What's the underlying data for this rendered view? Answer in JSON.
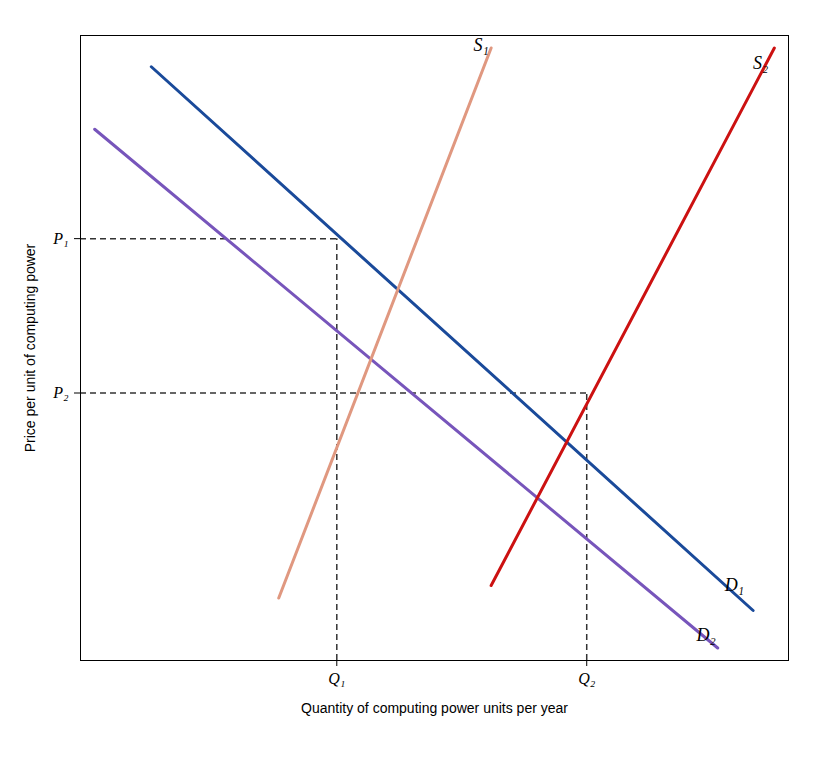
{
  "chart_data": {
    "type": "line",
    "xlabel": "Quantity of computing power units per year",
    "ylabel": "Price per unit of computing power",
    "xlim": [
      0,
      10
    ],
    "ylim": [
      0,
      10
    ],
    "xticks": [
      {
        "value": 3.62,
        "label": "Q₁"
      },
      {
        "value": 7.15,
        "label": "Q₂"
      }
    ],
    "yticks": [
      {
        "value": 6.75,
        "label": "P₁"
      },
      {
        "value": 4.28,
        "label": "P₂"
      }
    ],
    "grid": false,
    "series": [
      {
        "color": "#1a4a9a",
        "x": [
          1.0,
          9.5
        ],
        "values": [
          9.5,
          0.8
        ]
      },
      {
        "color": "#7755bb",
        "x": [
          0.2,
          9.0
        ],
        "values": [
          8.5,
          0.2
        ]
      },
      {
        "color": "#e09880",
        "x": [
          2.8,
          5.8
        ],
        "values": [
          1.0,
          9.8
        ]
      },
      {
        "color": "#cc1111",
        "x": [
          5.8,
          9.8
        ],
        "values": [
          1.2,
          9.8
        ]
      }
    ],
    "equilibria": [
      {
        "x": 3.62,
        "y": 6.75,
        "color": "#333333",
        "line_style": "dashed"
      },
      {
        "x": 7.15,
        "y": 4.28,
        "color": "#333333",
        "line_style": "dashed"
      }
    ],
    "annotations": [
      {
        "text": "D₁",
        "x": 9.1,
        "y": 1.2
      },
      {
        "text": "D₂",
        "x": 8.7,
        "y": 0.4
      },
      {
        "text": "S₁",
        "x": 5.55,
        "y": 9.85
      },
      {
        "text": "S₂",
        "x": 9.5,
        "y": 9.55
      }
    ]
  }
}
